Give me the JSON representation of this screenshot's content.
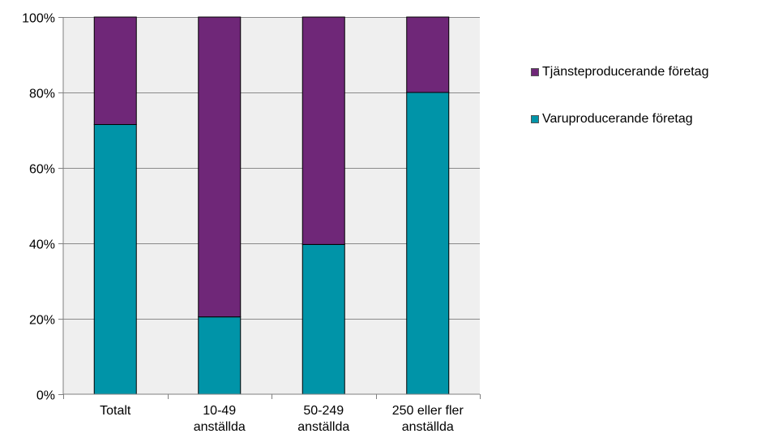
{
  "chart_data": {
    "type": "bar",
    "stacked": true,
    "categories": [
      "Totalt",
      "10-49 anställda",
      "50-249 anställda",
      "250 eller fler anställda"
    ],
    "category_lines": [
      [
        "Totalt"
      ],
      [
        "10-49",
        "anställda"
      ],
      [
        "50-249",
        "anställda"
      ],
      [
        "250 eller fler",
        "anställda"
      ]
    ],
    "series": [
      {
        "name": "Varuproducerande företag",
        "values": [
          71.5,
          20.5,
          39.7,
          80.0
        ],
        "color": "#0094a8"
      },
      {
        "name": "Tjänsteproducerande företag",
        "values": [
          28.5,
          79.5,
          60.3,
          20.0
        ],
        "color": "#6f2778"
      }
    ],
    "ylim": [
      0,
      100
    ],
    "yticks": [
      0,
      20,
      40,
      60,
      80,
      100
    ],
    "ytick_labels": [
      "0%",
      "20%",
      "40%",
      "60%",
      "80%",
      "100%"
    ],
    "grid": true,
    "plot_background": "#efefef",
    "legend_position": "right",
    "legend_order": [
      "Tjänsteproducerande företag",
      "Varuproducerande företag"
    ]
  }
}
